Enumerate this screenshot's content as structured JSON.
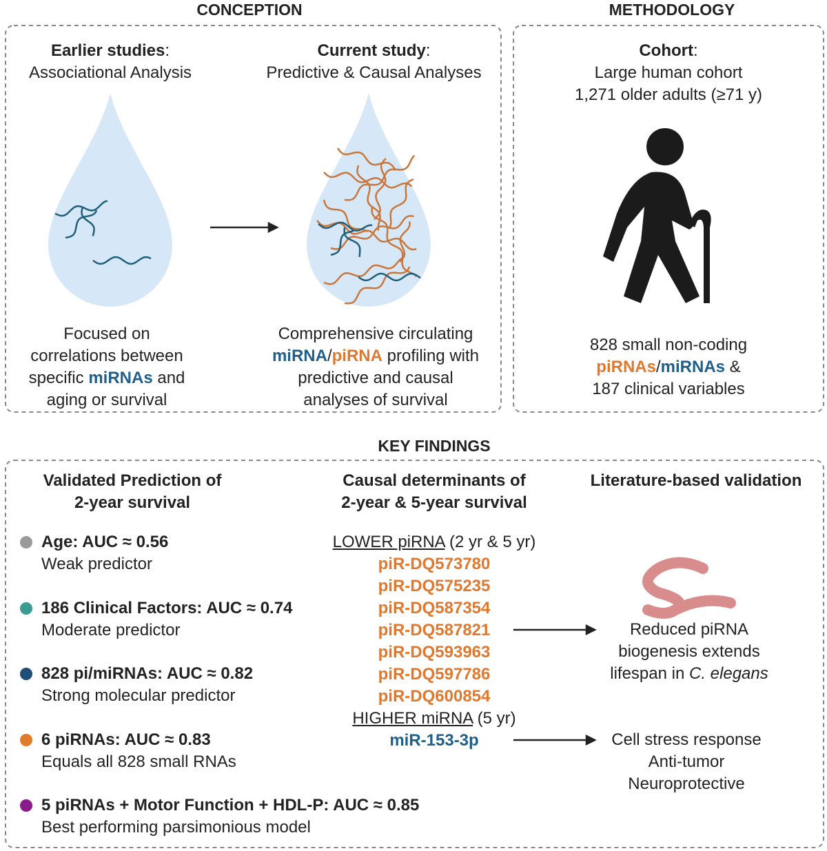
{
  "conception": {
    "title": "CONCEPTION",
    "earlier": {
      "heading": [
        "Earlier studies",
        ":"
      ],
      "subheading": "Associational Analysis",
      "description": [
        "Focused on",
        "correlations between",
        [
          "specific ",
          "miRNAs",
          " and"
        ],
        "aging or survival"
      ]
    },
    "current": {
      "heading": [
        "Current study",
        ":"
      ],
      "subheading": "Predictive & Causal Analyses",
      "description": [
        "Comprehensive circulating",
        [
          "miRNA",
          "/",
          "piRNA",
          " profiling with"
        ],
        "predictive and causal",
        "analyses of survival"
      ]
    }
  },
  "methodology": {
    "title": "METHODOLOGY",
    "heading": [
      "Cohort",
      ":"
    ],
    "lines": [
      "Large human cohort",
      "1,271 older adults (≥71 y)"
    ],
    "description": [
      "828 small non-coding",
      [
        "piRNAs",
        "/",
        "miRNAs",
        " &"
      ],
      "187 clinical variables"
    ]
  },
  "key_findings": {
    "title": "KEY FINDINGS",
    "prediction": {
      "heading": [
        "Validated Prediction of",
        "2-year survival"
      ],
      "items": [
        {
          "label": "Age: AUC ≈ 0.56",
          "note": "Weak predictor"
        },
        {
          "label": "186 Clinical Factors: AUC ≈ 0.74",
          "note": "Moderate predictor"
        },
        {
          "label": "828 pi/miRNAs: AUC ≈ 0.82",
          "note": "Strong molecular predictor"
        },
        {
          "label": "6 piRNAs: AUC ≈ 0.83",
          "note": "Equals all 828 small RNAs"
        },
        {
          "label": "5 piRNAs + Motor Function + HDL-P: AUC ≈ 0.85",
          "note": "Best performing parsimonious model"
        }
      ]
    },
    "causal": {
      "heading": [
        "Causal determinants of",
        "2-year & 5-year survival"
      ],
      "lower": [
        "LOWER piRNA",
        " (2 yr & 5 yr)"
      ],
      "pirnas": [
        "piR-DQ573780",
        "piR-DQ575235",
        "piR-DQ587354",
        "piR-DQ587821",
        "piR-DQ593963",
        "piR-DQ597786",
        "piR-DQ600854"
      ],
      "higher": [
        "HIGHER miRNA",
        " (5 yr)"
      ],
      "mirna": "miR-153-3p"
    },
    "literature": {
      "heading": "Literature-based validation",
      "worm": [
        "Reduced piRNA",
        "biogenesis extends",
        [
          "lifespan in ",
          "C. elegans"
        ]
      ],
      "cell": [
        "Cell stress response",
        "Anti-tumor",
        "Neuroprotective"
      ]
    }
  }
}
